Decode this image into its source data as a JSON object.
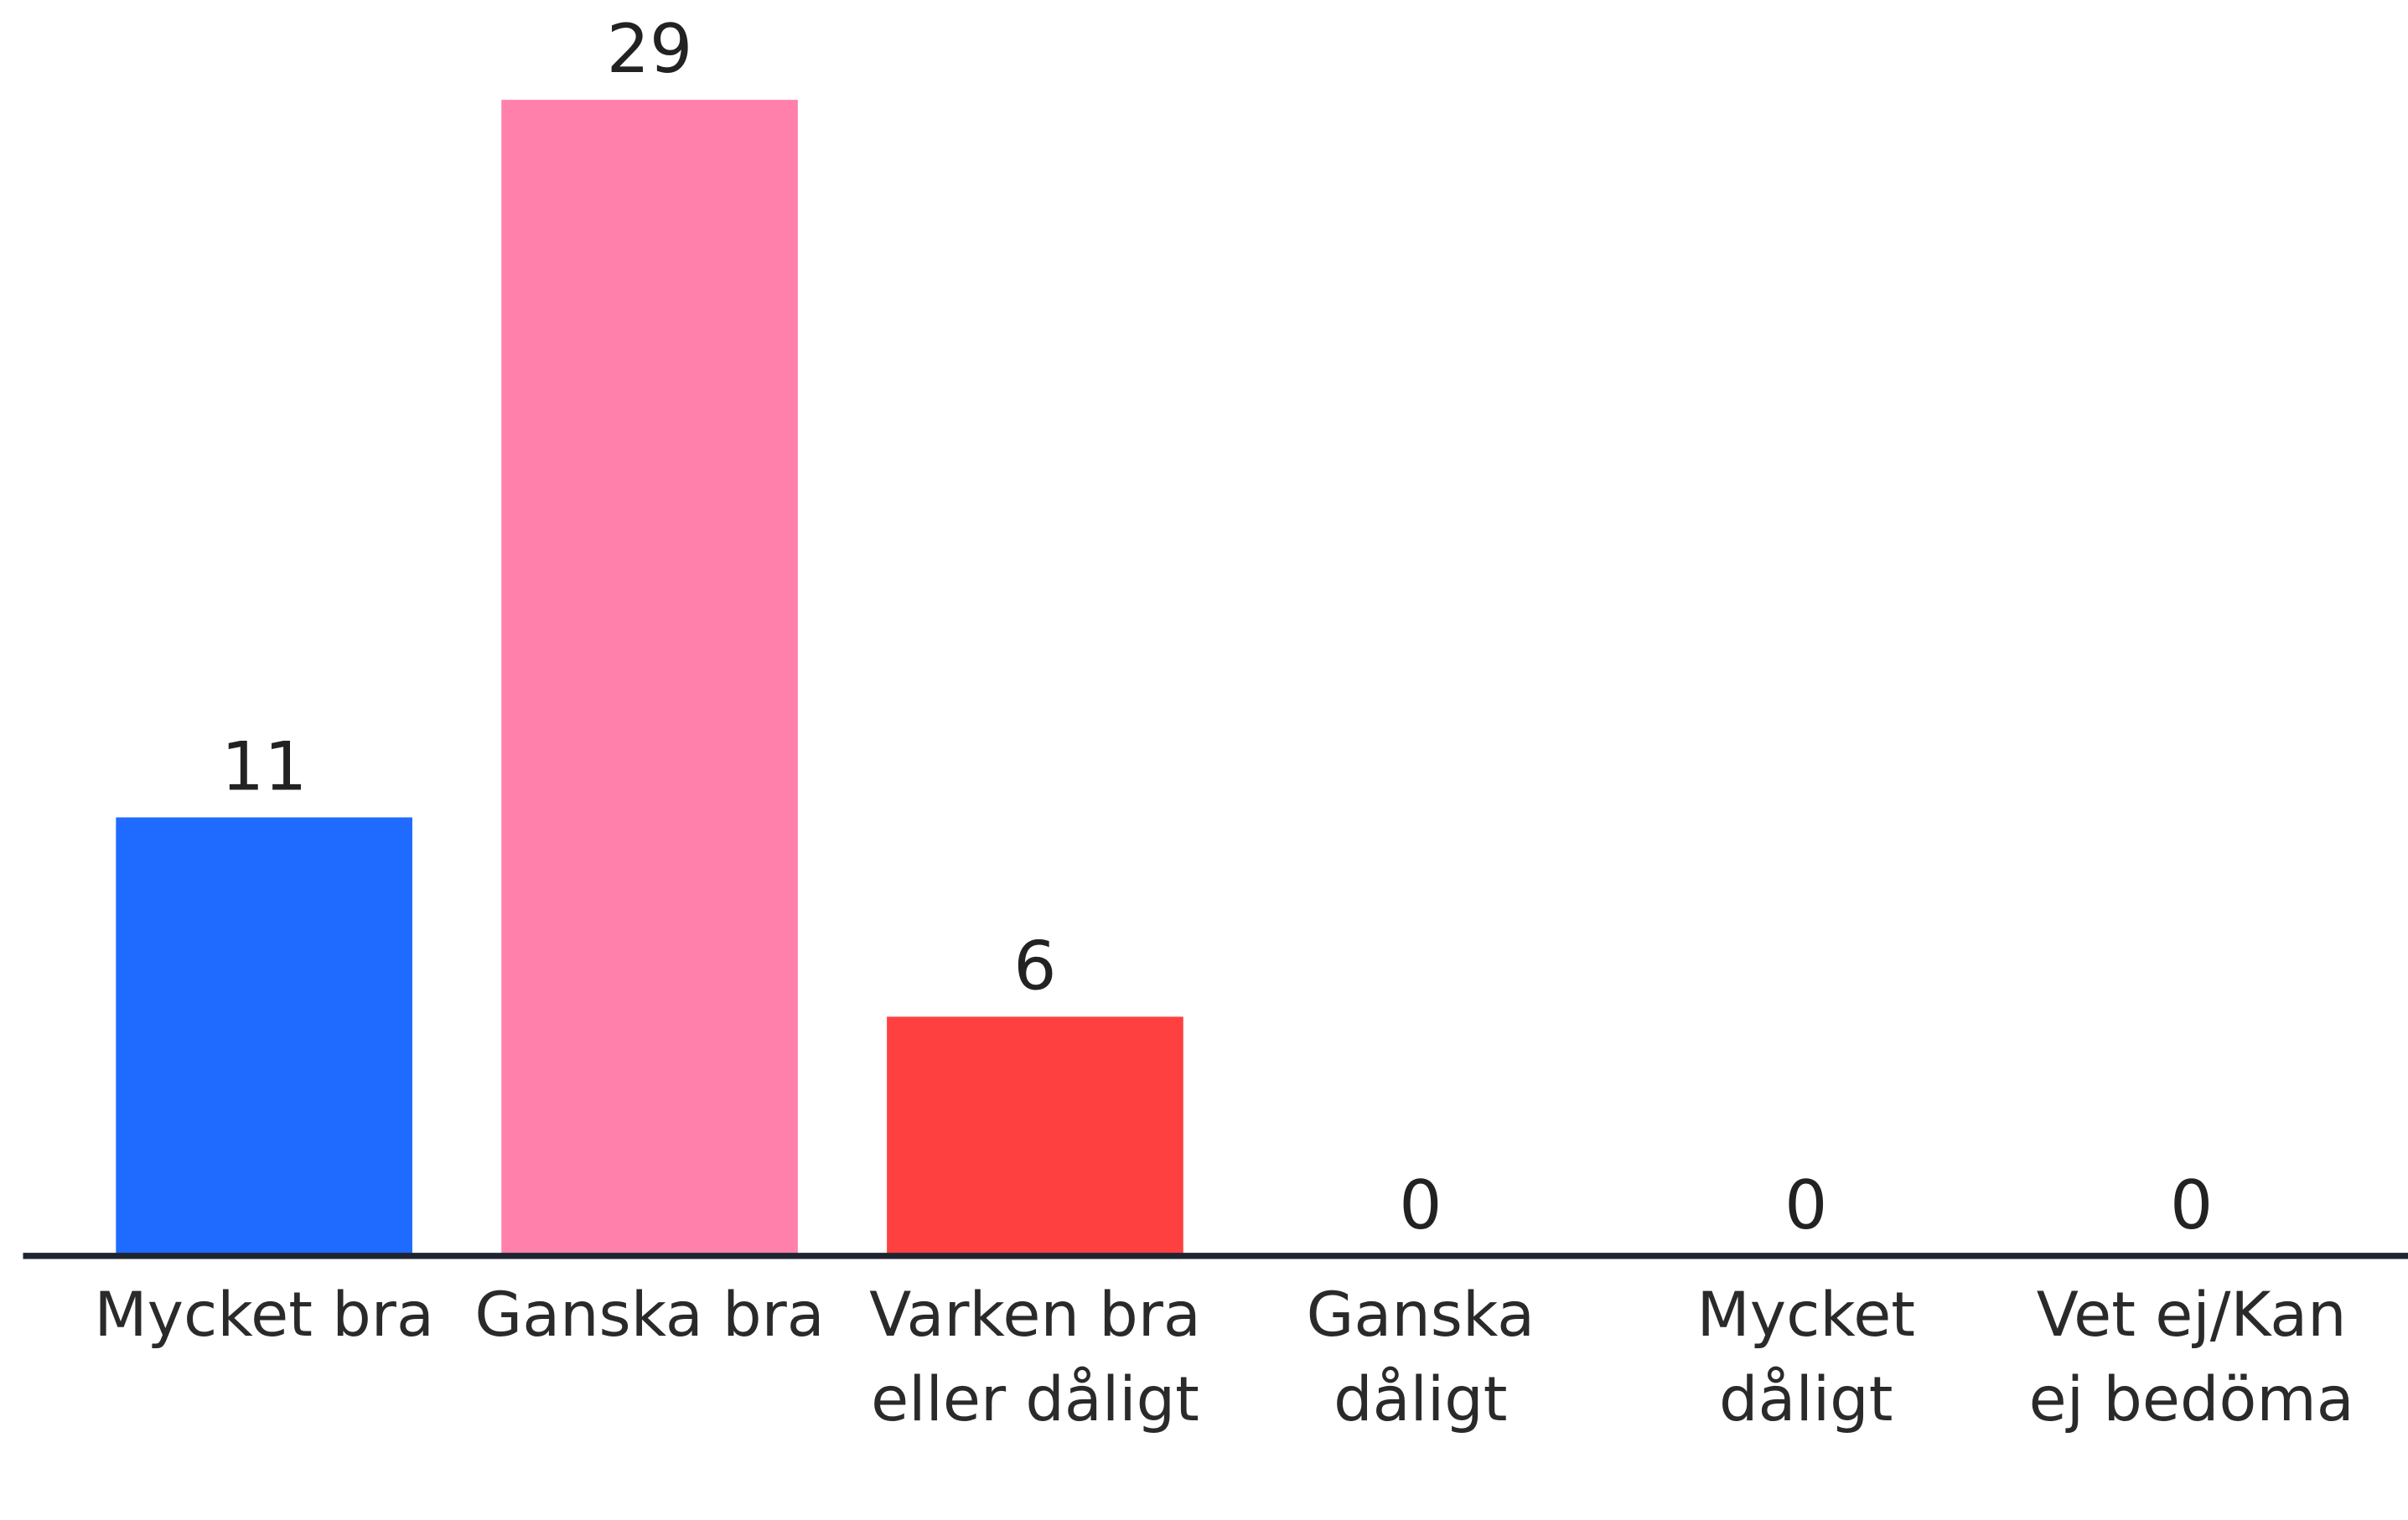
{
  "chart_data": {
    "type": "bar",
    "categories": [
      "Mycket bra",
      "Ganska bra",
      "Varken bra eller dåligt",
      "Ganska dåligt",
      "Mycket dåligt",
      "Vet ej/Kan ej bedöma"
    ],
    "values": [
      11,
      29,
      6,
      0,
      0,
      0
    ],
    "colors": [
      "#1f6bff",
      "#ff80aa",
      "#ff4040"
    ],
    "ylim": [
      0,
      29
    ]
  }
}
